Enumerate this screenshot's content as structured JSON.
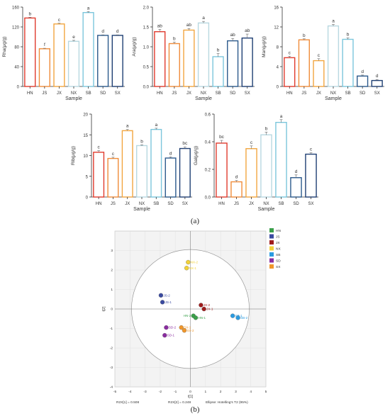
{
  "captions": {
    "a": "(a)",
    "b": "(b)"
  },
  "colors": {
    "HN": "#e03b2e",
    "JS": "#f08c3a",
    "JX": "#f2a640",
    "NX": "#b8d8e0",
    "SB": "#7cc6dc",
    "SD": "#2c5a8c",
    "SX": "#1f3f73"
  },
  "chart_data": [
    {
      "type": "bar",
      "id": "rha",
      "ylabel": "Rha(μg/g)",
      "xlabel": "Sample",
      "categories": [
        "HN",
        "JS",
        "JX",
        "NX",
        "SB",
        "SD",
        "SX"
      ],
      "values": [
        138,
        76,
        126,
        91,
        149,
        103,
        103
      ],
      "errors": [
        1.5,
        1,
        1.5,
        2,
        2,
        1,
        1
      ],
      "letters": [
        "b",
        "f",
        "c",
        "e",
        "a",
        "d",
        "d"
      ],
      "ylim": [
        0,
        160
      ],
      "yticks": [
        0,
        40,
        80,
        120,
        160
      ]
    },
    {
      "type": "bar",
      "id": "ara",
      "ylabel": "Ara(μg/g)",
      "xlabel": "Sample",
      "categories": [
        "HN",
        "JS",
        "JX",
        "NX",
        "SB",
        "SD",
        "SX"
      ],
      "values": [
        1.38,
        1.08,
        1.42,
        1.6,
        0.75,
        1.15,
        1.22
      ],
      "errors": [
        0.06,
        0.04,
        0.04,
        0.04,
        0.08,
        0.06,
        0.1
      ],
      "letters": [
        "ab",
        "b",
        "ab",
        "a",
        "b",
        "ab",
        "ab"
      ],
      "ylim": [
        0,
        2.0
      ],
      "yticks": [
        0.0,
        0.5,
        1.0,
        1.5,
        2.0
      ]
    },
    {
      "type": "bar",
      "id": "man",
      "ylabel": "Man(μg/g)",
      "xlabel": "Sample",
      "categories": [
        "HN",
        "JS",
        "JX",
        "NX",
        "SB",
        "SD",
        "SX"
      ],
      "values": [
        5.8,
        9.4,
        5.2,
        12.2,
        9.5,
        2.1,
        1.2
      ],
      "errors": [
        0.3,
        0.2,
        0.4,
        0.3,
        0.3,
        0.2,
        0.2
      ],
      "letters": [
        "c",
        "b",
        "c",
        "a",
        "b",
        "d",
        "d"
      ],
      "ylim": [
        0,
        16
      ],
      "yticks": [
        0,
        4,
        8,
        12,
        16
      ]
    },
    {
      "type": "bar",
      "id": "rib",
      "ylabel": "Rib(μg/g)",
      "xlabel": "Sample",
      "categories": [
        "HN",
        "JS",
        "JX",
        "NX",
        "SB",
        "SD",
        "SX"
      ],
      "values": [
        10.8,
        9.3,
        16.0,
        12.4,
        16.3,
        9.4,
        11.7
      ],
      "errors": [
        0.4,
        0.3,
        0.3,
        0.2,
        0.3,
        0.3,
        0.4
      ],
      "letters": [
        "c",
        "c",
        "a",
        "b",
        "a",
        "d",
        "bc"
      ],
      "ylim": [
        0,
        20
      ],
      "yticks": [
        0,
        5,
        10,
        15,
        20
      ]
    },
    {
      "type": "bar",
      "id": "gal",
      "ylabel": "Gal(μg/g)",
      "xlabel": "Sample",
      "categories": [
        "HN",
        "JS",
        "JX",
        "NX",
        "SB",
        "SD",
        "SX"
      ],
      "values": [
        0.39,
        0.11,
        0.35,
        0.45,
        0.54,
        0.14,
        0.31
      ],
      "errors": [
        0.02,
        0.01,
        0.02,
        0.02,
        0.02,
        0.02,
        0.01
      ],
      "letters": [
        "bc",
        "d",
        "c",
        "b",
        "a",
        "d",
        "c"
      ],
      "ylim": [
        0,
        0.6
      ],
      "yticks": [
        0.0,
        0.2,
        0.4,
        0.6
      ]
    },
    {
      "type": "scatter",
      "id": "pca",
      "xlabel": "t[1]",
      "ylabel": "t[2]",
      "xlim": [
        -5,
        5
      ],
      "ylim": [
        -4,
        4
      ],
      "xticks": [
        -5,
        -4,
        -3,
        -2,
        -1,
        0,
        1,
        2,
        3,
        4,
        5
      ],
      "yticks": [
        -4,
        -3,
        -2,
        -1,
        0,
        1,
        2,
        3
      ],
      "footer_left": "R2X[1] = 0.508",
      "footer_mid": "R2X[2] = 0.248",
      "footer_right": "Ellipse: Hotelling's T2 (95%)",
      "legend": [
        {
          "name": "HN",
          "color": "#3aa04a"
        },
        {
          "name": "JS",
          "color": "#3a4aa0"
        },
        {
          "name": "JX",
          "color": "#a01c1c"
        },
        {
          "name": "NX",
          "color": "#f2d23a"
        },
        {
          "name": "SB",
          "color": "#2b9be0"
        },
        {
          "name": "SD",
          "color": "#8a2ca0"
        },
        {
          "name": "SX",
          "color": "#f0962a"
        }
      ],
      "points": [
        {
          "label": "HN-2",
          "group": "HN",
          "x": 0.2,
          "y": -0.35
        },
        {
          "label": "HN-1",
          "group": "HN",
          "x": 0.35,
          "y": -0.45
        },
        {
          "label": "JS-2",
          "group": "JS",
          "x": -1.95,
          "y": 0.7
        },
        {
          "label": "JS-1",
          "group": "JS",
          "x": -1.85,
          "y": 0.35
        },
        {
          "label": "JX-2",
          "group": "JX",
          "x": 0.7,
          "y": 0.2
        },
        {
          "label": "JX-1",
          "group": "JX",
          "x": 0.9,
          "y": 0.0
        },
        {
          "label": "NX-2",
          "group": "NX",
          "x": -0.15,
          "y": 2.4
        },
        {
          "label": "NX-1",
          "group": "NX",
          "x": -0.25,
          "y": 2.1
        },
        {
          "label": "SB-1",
          "group": "SB",
          "x": 2.8,
          "y": -0.35
        },
        {
          "label": "SB-2",
          "group": "SB",
          "x": 3.15,
          "y": -0.45
        },
        {
          "label": "SD-2",
          "group": "SD",
          "x": -1.6,
          "y": -0.95
        },
        {
          "label": "SD-1",
          "group": "SD",
          "x": -1.7,
          "y": -1.35
        },
        {
          "label": "SX-1",
          "group": "SX",
          "x": -0.6,
          "y": -0.95
        },
        {
          "label": "SX-2",
          "group": "SX",
          "x": -0.4,
          "y": -1.1
        }
      ]
    }
  ]
}
